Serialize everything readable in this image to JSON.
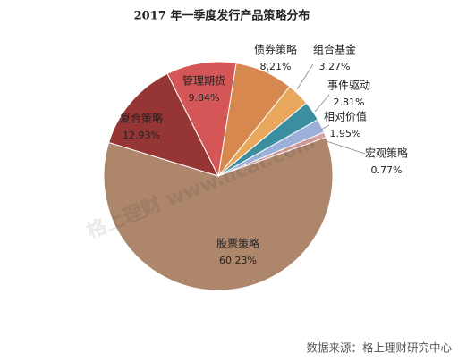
{
  "chart_data": {
    "type": "pie",
    "title": "2017 年一季度发行产品策略分布",
    "categories": [
      "债券策略",
      "组合基金",
      "事件驱动",
      "相对价值",
      "宏观策略",
      "股票策略",
      "复合策略",
      "管理期货"
    ],
    "values": [
      8.21,
      3.27,
      2.81,
      1.95,
      0.77,
      60.23,
      12.93,
      9.84
    ],
    "value_labels": [
      "8.21%",
      "3.27%",
      "2.81%",
      "1.95%",
      "0.77%",
      "60.23%",
      "12.93%",
      "9.84%"
    ],
    "colors": [
      "#d6884f",
      "#e8a75c",
      "#3b8ea0",
      "#9bb0d8",
      "#d9a3a0",
      "#ad866c",
      "#953535",
      "#d45656"
    ],
    "watermark": "格上理财  www.licai.com",
    "source": "数据来源：格上理财研究中心"
  }
}
